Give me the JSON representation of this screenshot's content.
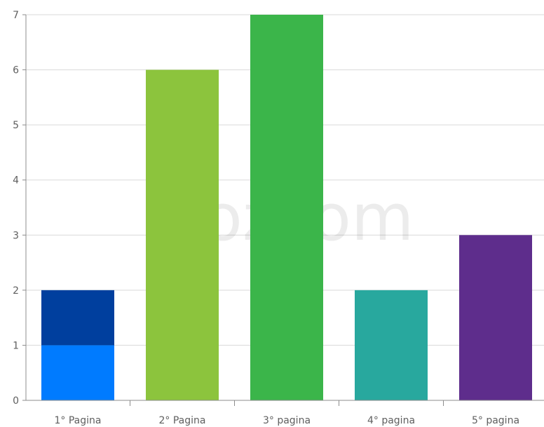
{
  "chart_data": {
    "type": "bar",
    "stacked": true,
    "categories": [
      "1° Pagina",
      "2° Pagina",
      "3° pagina",
      "4° pagina",
      "5° pagina"
    ],
    "bars": [
      {
        "segments": [
          {
            "value": 1,
            "color": "#007bff"
          },
          {
            "value": 1,
            "color": "#003f9e"
          }
        ]
      },
      {
        "segments": [
          {
            "value": 6,
            "color": "#8cc43d"
          }
        ]
      },
      {
        "segments": [
          {
            "value": 7,
            "color": "#3bb54a"
          }
        ]
      },
      {
        "segments": [
          {
            "value": 2,
            "color": "#28a89e"
          }
        ]
      },
      {
        "segments": [
          {
            "value": 3,
            "color": "#5e2d8c"
          }
        ]
      }
    ],
    "yticks": [
      "0",
      "1",
      "2",
      "3",
      "4",
      "5",
      "6",
      "7"
    ],
    "ylim": [
      0,
      7
    ],
    "grid": true,
    "title": "",
    "xlabel": "",
    "ylabel": ""
  },
  "watermark": {
    "text": "ozcom"
  }
}
